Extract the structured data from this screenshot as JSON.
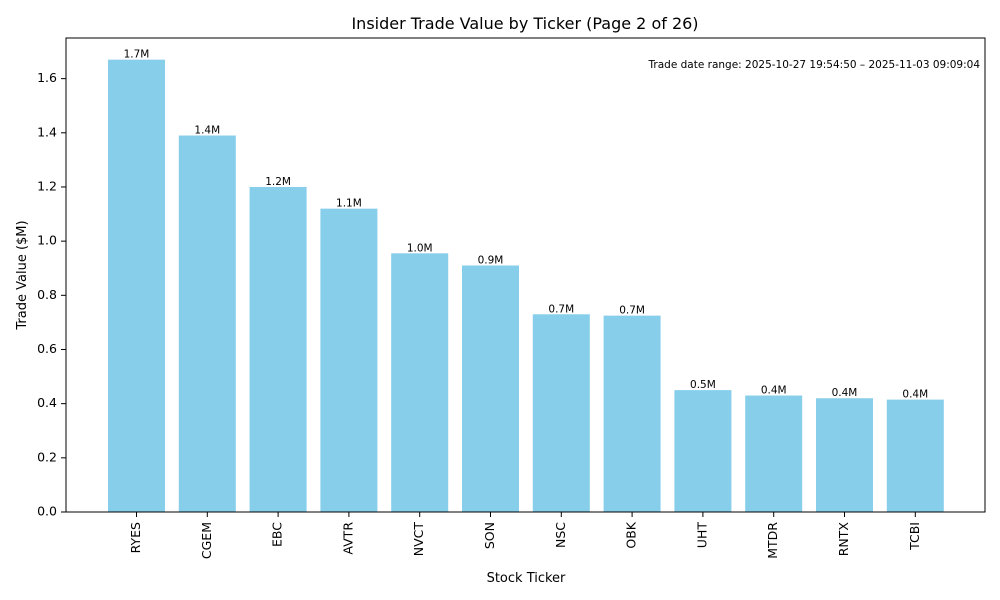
{
  "chart_data": {
    "type": "bar",
    "title": "Insider Trade Value by Ticker (Page 2 of 26)",
    "xlabel": "Stock Ticker",
    "ylabel": "Trade Value ($M)",
    "categories": [
      "RYES",
      "CGEM",
      "EBC",
      "AVTR",
      "NVCT",
      "SON",
      "NSC",
      "OBK",
      "UHT",
      "MTDR",
      "RNTX",
      "TCBI"
    ],
    "values": [
      1.67,
      1.39,
      1.2,
      1.12,
      0.955,
      0.91,
      0.73,
      0.725,
      0.45,
      0.43,
      0.42,
      0.415
    ],
    "data_labels": [
      "1.7M",
      "1.4M",
      "1.2M",
      "1.1M",
      "1.0M",
      "0.9M",
      "0.7M",
      "0.7M",
      "0.5M",
      "0.4M",
      "0.4M",
      "0.4M"
    ],
    "ylim": [
      0,
      1.75
    ],
    "yticks": [
      0.0,
      0.2,
      0.4,
      0.6,
      0.8,
      1.0,
      1.2,
      1.4,
      1.6
    ],
    "ytick_labels": [
      "0.0",
      "0.2",
      "0.4",
      "0.6",
      "0.8",
      "1.0",
      "1.2",
      "1.4",
      "1.6"
    ],
    "bar_color": "#87CEEB",
    "annotation": "Trade date range: 2025-10-27 19:54:50 – 2025-11-03 09:09:04",
    "grid": false
  }
}
